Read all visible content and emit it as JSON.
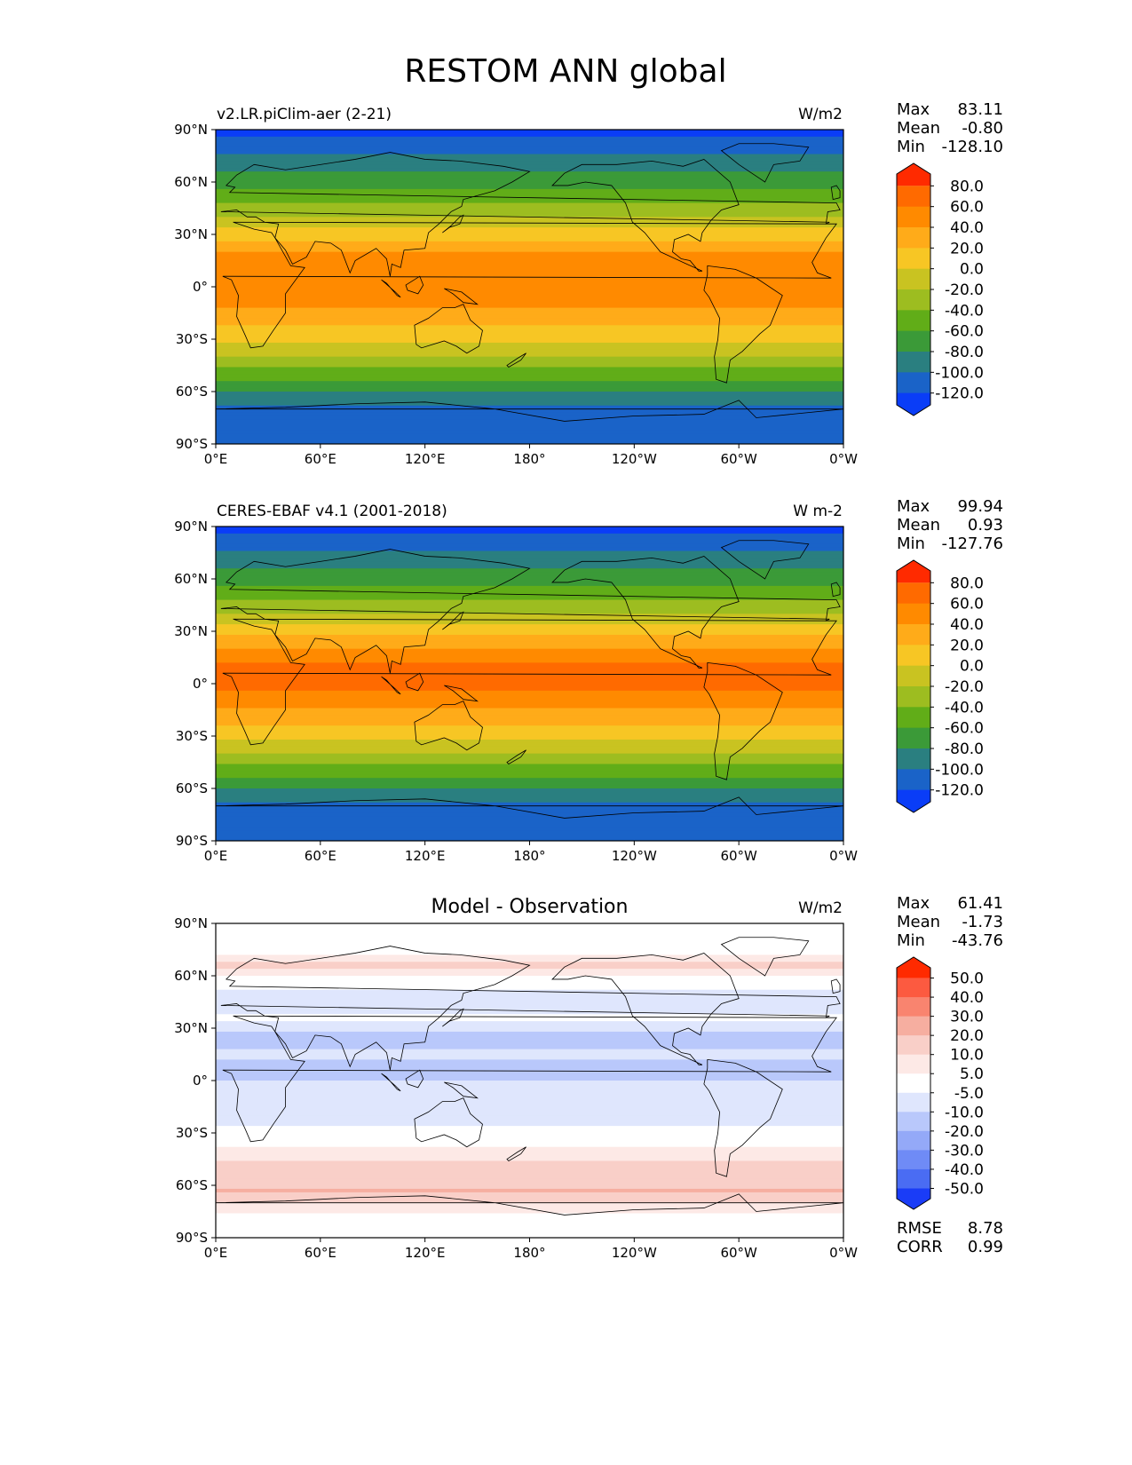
{
  "figure": {
    "title": "RESTOM ANN global"
  },
  "chart_data": [
    {
      "type": "heatmap",
      "title": "v2.LR.piClim-aer (2-21)",
      "units": "W/m2",
      "stats": [
        {
          "label": "Max",
          "value": "83.11"
        },
        {
          "label": "Mean",
          "value": "-0.80"
        },
        {
          "label": "Min",
          "value": "-128.10"
        }
      ],
      "colorbar": {
        "levels": [
          "80.0",
          "60.0",
          "40.0",
          "20.0",
          "0.0",
          "-20.0",
          "-40.0",
          "-60.0",
          "-80.0",
          "-100.0",
          "-120.0"
        ],
        "colors": [
          "#ff2a00",
          "#ff6a00",
          "#ff8a00",
          "#ffab19",
          "#f7c624",
          "#c9c321",
          "#9dbd20",
          "#61ad18",
          "#3b9a38",
          "#2a7f80",
          "#1a63c8",
          "#0a3df7"
        ]
      },
      "xticks": [
        "0°E",
        "60°E",
        "120°E",
        "180°",
        "120°W",
        "60°W",
        "0°W"
      ],
      "yticks": [
        "90°N",
        "60°N",
        "30°N",
        "0°",
        "30°S",
        "60°S",
        "90°S"
      ],
      "lat_profile_wm2": [
        [
          90,
          -125
        ],
        [
          80,
          -110
        ],
        [
          70,
          -90
        ],
        [
          60,
          -70
        ],
        [
          50,
          -45
        ],
        [
          40,
          -20
        ],
        [
          30,
          10
        ],
        [
          20,
          40
        ],
        [
          10,
          55
        ],
        [
          0,
          58
        ],
        [
          -10,
          45
        ],
        [
          -20,
          25
        ],
        [
          -30,
          5
        ],
        [
          -40,
          -20
        ],
        [
          -50,
          -50
        ],
        [
          -60,
          -80
        ],
        [
          -70,
          -105
        ],
        [
          -80,
          -115
        ],
        [
          -90,
          -120
        ]
      ]
    },
    {
      "type": "heatmap",
      "title": "CERES-EBAF v4.1 (2001-2018)",
      "units": "W m-2",
      "stats": [
        {
          "label": "Max",
          "value": "99.94"
        },
        {
          "label": "Mean",
          "value": "0.93"
        },
        {
          "label": "Min",
          "value": "-127.76"
        }
      ],
      "colorbar": {
        "levels": [
          "80.0",
          "60.0",
          "40.0",
          "20.0",
          "0.0",
          "-20.0",
          "-40.0",
          "-60.0",
          "-80.0",
          "-100.0",
          "-120.0"
        ],
        "colors": [
          "#ff2a00",
          "#ff6a00",
          "#ff8a00",
          "#ffab19",
          "#f7c624",
          "#c9c321",
          "#9dbd20",
          "#61ad18",
          "#3b9a38",
          "#2a7f80",
          "#1a63c8",
          "#0a3df7"
        ]
      },
      "xticks": [
        "0°E",
        "60°E",
        "120°E",
        "180°",
        "120°W",
        "60°W",
        "0°W"
      ],
      "yticks": [
        "90°N",
        "60°N",
        "30°N",
        "0°",
        "30°S",
        "60°S",
        "90°S"
      ],
      "lat_profile_wm2": [
        [
          90,
          -125
        ],
        [
          80,
          -110
        ],
        [
          70,
          -90
        ],
        [
          60,
          -70
        ],
        [
          50,
          -45
        ],
        [
          40,
          -18
        ],
        [
          30,
          12
        ],
        [
          20,
          42
        ],
        [
          10,
          62
        ],
        [
          0,
          68
        ],
        [
          -10,
          50
        ],
        [
          -20,
          28
        ],
        [
          -30,
          6
        ],
        [
          -40,
          -20
        ],
        [
          -50,
          -50
        ],
        [
          -60,
          -80
        ],
        [
          -70,
          -105
        ],
        [
          -80,
          -115
        ],
        [
          -90,
          -120
        ]
      ]
    },
    {
      "type": "heatmap",
      "title": "Model - Observation",
      "units": "W/m2",
      "stats": [
        {
          "label": "Max",
          "value": "61.41"
        },
        {
          "label": "Mean",
          "value": "-1.73"
        },
        {
          "label": "Min",
          "value": "-43.76"
        }
      ],
      "colorbar": {
        "levels": [
          "50.0",
          "40.0",
          "30.0",
          "20.0",
          "10.0",
          "5.0",
          "-5.0",
          "-10.0",
          "-20.0",
          "-30.0",
          "-40.0",
          "-50.0"
        ],
        "colors": [
          "#ff2a00",
          "#fc5a40",
          "#f9846f",
          "#f6aea0",
          "#f9cfc8",
          "#fde9e6",
          "#ffffff",
          "#dfe6fd",
          "#b9c8fb",
          "#94a9f8",
          "#6f8bf6",
          "#4a6cf3",
          "#1a3cf7"
        ]
      },
      "extra_stats": [
        {
          "label": "RMSE",
          "value": "8.78"
        },
        {
          "label": "CORR",
          "value": "0.99"
        }
      ],
      "xticks": [
        "0°E",
        "60°E",
        "120°E",
        "180°",
        "120°W",
        "60°W",
        "0°W"
      ],
      "yticks": [
        "90°N",
        "60°N",
        "30°N",
        "0°",
        "30°S",
        "60°S",
        "90°S"
      ],
      "lat_profile_wm2": [
        [
          90,
          0
        ],
        [
          75,
          2
        ],
        [
          65,
          12
        ],
        [
          55,
          -4
        ],
        [
          45,
          -9
        ],
        [
          35,
          -4
        ],
        [
          25,
          -12
        ],
        [
          15,
          -9
        ],
        [
          5,
          -14
        ],
        [
          0,
          -10
        ],
        [
          -10,
          -6
        ],
        [
          -20,
          -8
        ],
        [
          -30,
          -3
        ],
        [
          -40,
          7
        ],
        [
          -50,
          12
        ],
        [
          -58,
          16
        ],
        [
          -64,
          22
        ],
        [
          -70,
          8
        ],
        [
          -80,
          2
        ],
        [
          -90,
          0
        ]
      ]
    }
  ]
}
